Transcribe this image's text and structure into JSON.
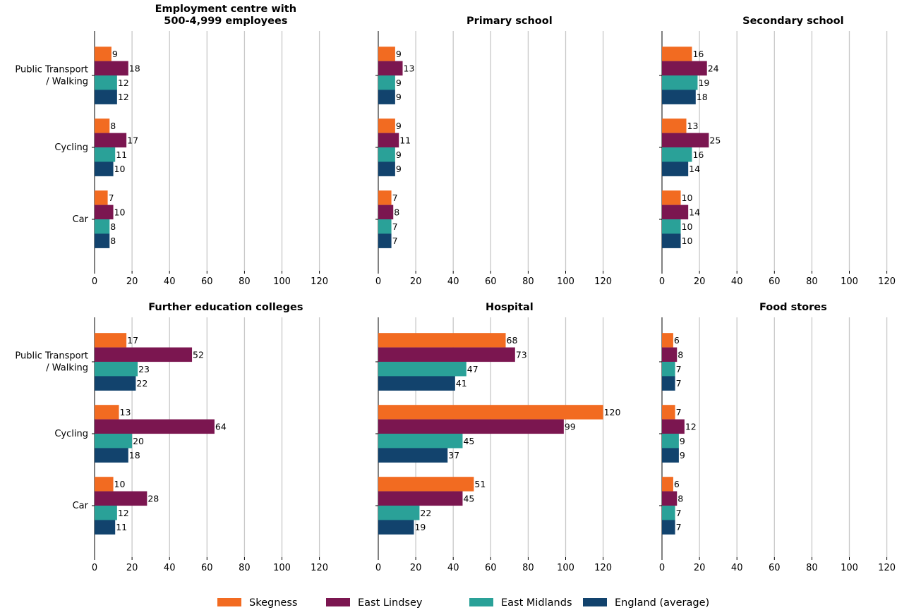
{
  "chart_data": {
    "type": "bar",
    "orientation": "horizontal",
    "categories": [
      "Public Transport\n/ Walking",
      "Cycling",
      "Car"
    ],
    "xlim": [
      0,
      130
    ],
    "xticks": [
      0,
      20,
      40,
      60,
      80,
      100,
      120
    ],
    "grid": "vertical",
    "legend_position": "bottom",
    "series_colors": {
      "Skegness": "#f26b21",
      "East Lindsey": "#7b1650",
      "East Midlands": "#2aa198",
      "England (average)": "#12436d"
    },
    "legend": [
      "Skegness",
      "East Lindsey",
      "East Midlands",
      "England (average)"
    ],
    "panels": [
      {
        "title": "Employment centre with\n500-4,999 employees",
        "series": [
          {
            "name": "Skegness",
            "values": [
              9,
              8,
              7
            ]
          },
          {
            "name": "East Lindsey",
            "values": [
              18,
              17,
              10
            ]
          },
          {
            "name": "East Midlands",
            "values": [
              12,
              11,
              8
            ]
          },
          {
            "name": "England (average)",
            "values": [
              12,
              10,
              8
            ]
          }
        ]
      },
      {
        "title": "Primary school",
        "series": [
          {
            "name": "Skegness",
            "values": [
              9,
              9,
              7
            ]
          },
          {
            "name": "East Lindsey",
            "values": [
              13,
              11,
              8
            ]
          },
          {
            "name": "East Midlands",
            "values": [
              9,
              9,
              7
            ]
          },
          {
            "name": "England (average)",
            "values": [
              9,
              9,
              7
            ]
          }
        ]
      },
      {
        "title": "Secondary school",
        "series": [
          {
            "name": "Skegness",
            "values": [
              16,
              13,
              10
            ]
          },
          {
            "name": "East Lindsey",
            "values": [
              24,
              25,
              14
            ]
          },
          {
            "name": "East Midlands",
            "values": [
              19,
              16,
              10
            ]
          },
          {
            "name": "England (average)",
            "values": [
              18,
              14,
              10
            ]
          }
        ]
      },
      {
        "title": "Further education colleges",
        "series": [
          {
            "name": "Skegness",
            "values": [
              17,
              13,
              10
            ]
          },
          {
            "name": "East Lindsey",
            "values": [
              52,
              64,
              28
            ]
          },
          {
            "name": "East Midlands",
            "values": [
              23,
              20,
              12
            ]
          },
          {
            "name": "England (average)",
            "values": [
              22,
              18,
              11
            ]
          }
        ]
      },
      {
        "title": "Hospital",
        "series": [
          {
            "name": "Skegness",
            "values": [
              68,
              120,
              51
            ]
          },
          {
            "name": "East Lindsey",
            "values": [
              73,
              99,
              45
            ]
          },
          {
            "name": "East Midlands",
            "values": [
              47,
              45,
              22
            ]
          },
          {
            "name": "England (average)",
            "values": [
              41,
              37,
              19
            ]
          }
        ]
      },
      {
        "title": "Food stores",
        "series": [
          {
            "name": "Skegness",
            "values": [
              6,
              7,
              6
            ]
          },
          {
            "name": "East Lindsey",
            "values": [
              8,
              12,
              8
            ]
          },
          {
            "name": "East Midlands",
            "values": [
              7,
              9,
              7
            ]
          },
          {
            "name": "England (average)",
            "values": [
              7,
              9,
              7
            ]
          }
        ]
      }
    ]
  }
}
